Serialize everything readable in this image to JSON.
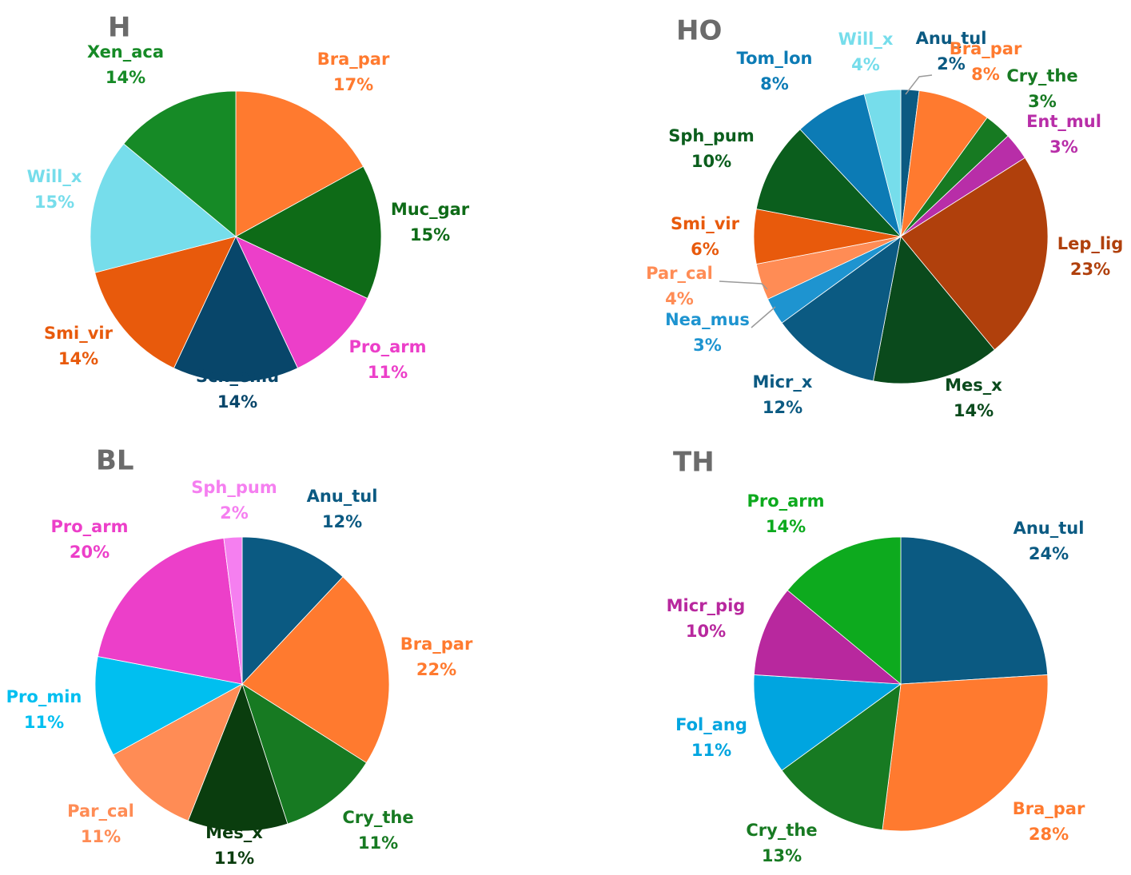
{
  "chart_data": [
    {
      "type": "pie",
      "title": "H",
      "slices": [
        {
          "name": "Bra_par",
          "value": 17,
          "label": "17%",
          "color": "#FF7A2F"
        },
        {
          "name": "Muc_gar",
          "value": 15,
          "label": "15%",
          "color": "#0E6B17"
        },
        {
          "name": "Pro_arm",
          "value": 11,
          "label": "11%",
          "color": "#EC3FC9"
        },
        {
          "name": "Sch_emu",
          "value": 14,
          "label": "14%",
          "color": "#08466A"
        },
        {
          "name": "Smi_vir",
          "value": 14,
          "label": "14%",
          "color": "#E85A0C"
        },
        {
          "name": "Will_x",
          "value": 15,
          "label": "15%",
          "color": "#76DDEB"
        },
        {
          "name": "Xen_aca",
          "value": 14,
          "label": "14%",
          "color": "#168A26"
        }
      ]
    },
    {
      "type": "pie",
      "title": "HO",
      "slices": [
        {
          "name": "Anu_tul",
          "value": 2,
          "label": "2%",
          "color": "#0B5A82"
        },
        {
          "name": "Bra_par",
          "value": 8,
          "label": "8%",
          "color": "#FF7A2F"
        },
        {
          "name": "Cry_the",
          "value": 3,
          "label": "3%",
          "color": "#177A22"
        },
        {
          "name": "Ent_mul",
          "value": 3,
          "label": "3%",
          "color": "#B82EA8"
        },
        {
          "name": "Lep_lig",
          "value": 23,
          "label": "23%",
          "color": "#B0400C"
        },
        {
          "name": "Mes_x",
          "value": 14,
          "label": "14%",
          "color": "#0A4A1C"
        },
        {
          "name": "Micr_x",
          "value": 12,
          "label": "12%",
          "color": "#0B5A82"
        },
        {
          "name": "Nea_mus",
          "value": 3,
          "label": "3%",
          "color": "#1E94D0"
        },
        {
          "name": "Par_cal",
          "value": 4,
          "label": "4%",
          "color": "#FF8C55"
        },
        {
          "name": "Smi_vir",
          "value": 6,
          "label": "6%",
          "color": "#E85A0C"
        },
        {
          "name": "Sph_pum",
          "value": 10,
          "label": "10%",
          "color": "#0B5E1D"
        },
        {
          "name": "Tom_lon",
          "value": 8,
          "label": "8%",
          "color": "#0C7BB5"
        },
        {
          "name": "Will_x",
          "value": 4,
          "label": "4%",
          "color": "#76DDEB"
        }
      ]
    },
    {
      "type": "pie",
      "title": "BL",
      "slices": [
        {
          "name": "Anu_tul",
          "value": 12,
          "label": "12%",
          "color": "#0B5A82"
        },
        {
          "name": "Bra_par",
          "value": 22,
          "label": "22%",
          "color": "#FF7A2F"
        },
        {
          "name": "Cry_the",
          "value": 11,
          "label": "11%",
          "color": "#177A22"
        },
        {
          "name": "Mes_x",
          "value": 11,
          "label": "11%",
          "color": "#0A3D0E"
        },
        {
          "name": "Par_cal",
          "value": 11,
          "label": "11%",
          "color": "#FF8C55"
        },
        {
          "name": "Pro_min",
          "value": 11,
          "label": "11%",
          "color": "#00BFF0"
        },
        {
          "name": "Pro_arm",
          "value": 20,
          "label": "20%",
          "color": "#EC3FC9"
        },
        {
          "name": "Sph_pum",
          "value": 2,
          "label": "2%",
          "color": "#F57FF0"
        }
      ]
    },
    {
      "type": "pie",
      "title": "TH",
      "slices": [
        {
          "name": "Anu_tul",
          "value": 24,
          "label": "24%",
          "color": "#0B5A82"
        },
        {
          "name": "Bra_par",
          "value": 28,
          "label": "28%",
          "color": "#FF7A2F"
        },
        {
          "name": "Cry_the",
          "value": 13,
          "label": "13%",
          "color": "#177A22"
        },
        {
          "name": "Fol_ang",
          "value": 11,
          "label": "11%",
          "color": "#00A5E0"
        },
        {
          "name": "Micr_pig",
          "value": 10,
          "label": "10%",
          "color": "#B8289E"
        },
        {
          "name": "Pro_arm",
          "value": 14,
          "label": "14%",
          "color": "#0DAA1E"
        }
      ]
    }
  ]
}
